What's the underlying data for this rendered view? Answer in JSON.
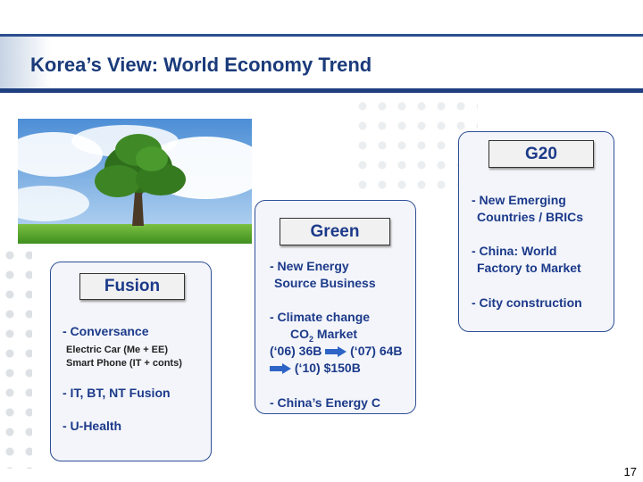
{
  "title": "Korea’s View: World Economy Trend",
  "fusion": {
    "label": "Fusion",
    "item1": "- Conversance",
    "sub1": "Electric Car (Me + EE)",
    "sub2": "Smart Phone (IT + conts)",
    "item2": "- IT, BT, NT Fusion",
    "item3": "- U-Health"
  },
  "green": {
    "label": "Green",
    "item1_line1": "- New Energy",
    "item1_line2": "Source Business",
    "item2_line1": "- Climate change",
    "item2_co": "CO",
    "item2_sub": "2",
    "item2_market": " Market",
    "item2_v1": "(‘06) 36B",
    "item2_v2": "(‘07) 64B",
    "item2_v3": "(‘10) $150B",
    "item3": "- China’s Energy C"
  },
  "g20": {
    "label": "G20",
    "item1_line1": "- New Emerging",
    "item1_line2": "Countries / BRICs",
    "item2_line1": "- China: World",
    "item2_line2": "Factory to Market",
    "item3": "-  City construction"
  },
  "page_number": "17",
  "colors": {
    "title": "#1a3a7a",
    "text": "#1c3a8a",
    "border": "#2e4f96",
    "arrow": "#2e64c6"
  }
}
